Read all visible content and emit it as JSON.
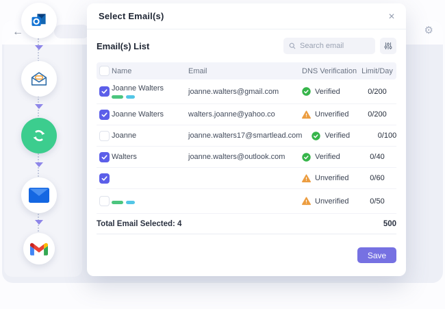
{
  "chrome": {
    "back_icon": "←",
    "gear_icon": "⚙"
  },
  "workflow": {
    "steps": [
      {
        "icon": "outlook-logo"
      },
      {
        "icon": "open-envelope"
      },
      {
        "icon": "sync-call"
      },
      {
        "icon": "blue-envelope"
      },
      {
        "icon": "gmail-logo"
      }
    ]
  },
  "modal": {
    "title": "Select Email(s)",
    "close_icon": "✕",
    "list_title": "Email(s) List",
    "search_placeholder": "Search email",
    "table": {
      "headers": {
        "name": "Name",
        "email": "Email",
        "dns": "DNS Verification",
        "limit": "Limit/Day"
      },
      "rows": [
        {
          "checked": true,
          "name": "Joanne Walters",
          "name_skeleton": false,
          "tags": true,
          "email": "joanne.walters@gmail.com",
          "email_skeleton": false,
          "dns_state": "verified",
          "dns_label": "Verified",
          "limit": "0/200"
        },
        {
          "checked": true,
          "name": "Joanne Walters",
          "name_skeleton": false,
          "tags": false,
          "email": "walters.joanne@yahoo.co",
          "email_skeleton": false,
          "dns_state": "unverified",
          "dns_label": "Unverified",
          "limit": "0/200"
        },
        {
          "checked": false,
          "name": "Joanne",
          "name_skeleton": false,
          "tags": false,
          "email": "joanne.walters17@smartlead.com",
          "email_skeleton": false,
          "dns_state": "verified",
          "dns_label": "Verified",
          "limit": "0/100"
        },
        {
          "checked": true,
          "name": "Walters",
          "name_skeleton": false,
          "tags": false,
          "email": "joanne.walters@outlook.com",
          "email_skeleton": false,
          "dns_state": "verified",
          "dns_label": "Verified",
          "limit": "0/40"
        },
        {
          "checked": true,
          "name": "",
          "name_skeleton": true,
          "tags": false,
          "email": "",
          "email_skeleton": true,
          "dns_state": "unverified",
          "dns_label": "Unverified",
          "limit": "0/60"
        },
        {
          "checked": false,
          "name": "",
          "name_skeleton": true,
          "tags": true,
          "email": "",
          "email_skeleton": true,
          "dns_state": "unverified",
          "dns_label": "Unverified",
          "limit": "0/50"
        }
      ]
    },
    "total_label": "Total Email Selected: 4",
    "total_value": "500",
    "save_label": "Save"
  },
  "colors": {
    "accent_checkbox": "#5c5fe9",
    "save_button": "#7671e2",
    "verified": "#36b54a",
    "unverified": "#ec9d40",
    "tag_green": "#4cc57e",
    "tag_cyan": "#53c6e6",
    "step_green": "#3ccd8e",
    "panel_bg": "#edeff6"
  }
}
